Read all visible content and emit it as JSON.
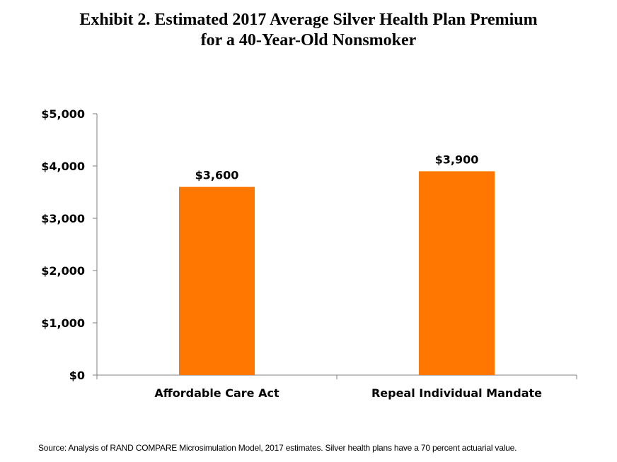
{
  "title": {
    "line1": "Exhibit 2. Estimated 2017 Average Silver Health Plan Premium",
    "line2": "for a 40-Year-Old Nonsmoker"
  },
  "chart_data": {
    "type": "bar",
    "title": "Exhibit 2. Estimated 2017 Average Silver Health Plan Premium for a 40-Year-Old Nonsmoker",
    "categories": [
      "Affordable Care Act",
      "Repeal Individual Mandate"
    ],
    "values": [
      3600,
      3900
    ],
    "data_labels": [
      "$3,600",
      "$3,900"
    ],
    "xlabel": "",
    "ylabel": "",
    "ylim": [
      0,
      5000
    ],
    "yticks": [
      0,
      1000,
      2000,
      3000,
      4000,
      5000
    ],
    "ytick_labels": [
      "$0",
      "$1,000",
      "$2,000",
      "$3,000",
      "$4,000",
      "$5,000"
    ],
    "bar_color": "#FF7700",
    "grid": false,
    "legend": "none"
  },
  "source": "Source: Analysis of RAND COMPARE Microsimulation Model, 2017 estimates. Silver health plans have a 70 percent actuarial value."
}
